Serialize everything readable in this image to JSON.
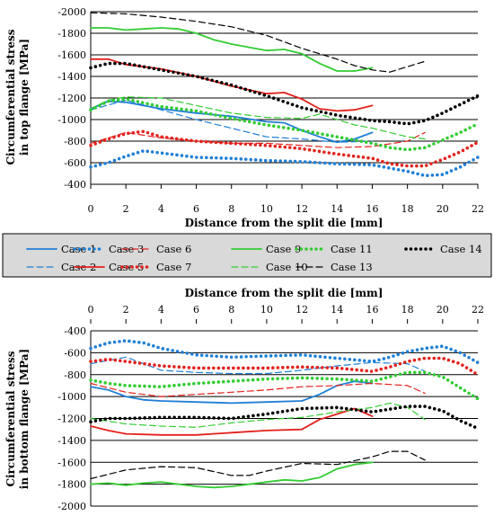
{
  "legend": [
    {
      "name": "Case 1",
      "color": "#1f7fd6",
      "style": "solid"
    },
    {
      "name": "Case 2",
      "color": "#1f7fd6",
      "style": "dash"
    },
    {
      "name": "Case 3",
      "color": "#1f7fd6",
      "style": "dot"
    },
    {
      "name": "Case 5",
      "color": "#e3211c",
      "style": "solid"
    },
    {
      "name": "Case 6",
      "color": "#e3211c",
      "style": "dash"
    },
    {
      "name": "Case 7",
      "color": "#e3211c",
      "style": "dot"
    },
    {
      "name": "Case 9",
      "color": "#33cc33",
      "style": "solid"
    },
    {
      "name": "Case 10",
      "color": "#33cc33",
      "style": "dash"
    },
    {
      "name": "Case 11",
      "color": "#33cc33",
      "style": "dot"
    },
    {
      "name": "Case 13",
      "color": "#000000",
      "style": "dash"
    },
    {
      "name": "Case 14",
      "color": "#000000",
      "style": "dot"
    }
  ],
  "chart_data": [
    {
      "type": "line",
      "title": "",
      "xlabel": "Distance from the split die [mm]",
      "ylabel": "Circumferential stress in top flange [MPa]",
      "xlim": [
        0,
        22
      ],
      "ylim": [
        -400,
        -2000
      ],
      "y_reversed": true,
      "xticks": [
        0,
        2,
        4,
        6,
        8,
        10,
        12,
        14,
        16,
        18,
        20,
        22
      ],
      "yticks": [
        -2000,
        -1800,
        -1600,
        -1400,
        -1200,
        -1000,
        -800,
        -600,
        -400
      ],
      "grid": "horizontal",
      "series": [
        {
          "name": "Case 1",
          "x": [
            0,
            1,
            2,
            4,
            6,
            8,
            10,
            11,
            12,
            13,
            14,
            15,
            16
          ],
          "y": [
            -1100,
            -1170,
            -1160,
            -1100,
            -1060,
            -1030,
            -980,
            -970,
            -900,
            -840,
            -790,
            -820,
            -880
          ]
        },
        {
          "name": "Case 2",
          "x": [
            0,
            2,
            4,
            6,
            8,
            10,
            12,
            14,
            16
          ],
          "y": [
            -1090,
            -1180,
            -1090,
            -1000,
            -920,
            -840,
            -820,
            -790,
            -800
          ]
        },
        {
          "name": "Case 3",
          "x": [
            0,
            1,
            2,
            3,
            4,
            6,
            8,
            10,
            12,
            14,
            16,
            18,
            19,
            20,
            21,
            22
          ],
          "y": [
            -560,
            -600,
            -660,
            -710,
            -690,
            -650,
            -640,
            -620,
            -610,
            -590,
            -580,
            -520,
            -480,
            -490,
            -560,
            -650
          ]
        },
        {
          "name": "Case 5",
          "x": [
            0,
            1,
            2,
            4,
            6,
            8,
            10,
            11,
            12,
            13,
            14,
            15,
            16
          ],
          "y": [
            -1560,
            -1560,
            -1510,
            -1470,
            -1400,
            -1310,
            -1240,
            -1250,
            -1190,
            -1100,
            -1080,
            -1090,
            -1130
          ]
        },
        {
          "name": "Case 6",
          "x": [
            0,
            2,
            4,
            6,
            8,
            10,
            12,
            14,
            16,
            18,
            19
          ],
          "y": [
            -780,
            -880,
            -830,
            -800,
            -780,
            -780,
            -760,
            -740,
            -750,
            -800,
            -880
          ]
        },
        {
          "name": "Case 7",
          "x": [
            0,
            1,
            2,
            3,
            4,
            6,
            8,
            10,
            12,
            14,
            16,
            17,
            18,
            19,
            20,
            21,
            22
          ],
          "y": [
            -760,
            -820,
            -870,
            -890,
            -840,
            -800,
            -780,
            -760,
            -730,
            -680,
            -640,
            -590,
            -570,
            -570,
            -630,
            -700,
            -790
          ]
        },
        {
          "name": "Case 9",
          "x": [
            0,
            1,
            2,
            3,
            4,
            5,
            6,
            7,
            8,
            9,
            10,
            11,
            12,
            13,
            14,
            15,
            16
          ],
          "y": [
            -1850,
            -1850,
            -1830,
            -1840,
            -1850,
            -1840,
            -1800,
            -1740,
            -1700,
            -1670,
            -1640,
            -1650,
            -1610,
            -1520,
            -1450,
            -1450,
            -1480
          ]
        },
        {
          "name": "Case 10",
          "x": [
            0,
            1,
            2,
            4,
            6,
            8,
            10,
            12,
            13,
            14,
            15,
            16,
            17,
            18,
            19
          ],
          "y": [
            -1100,
            -1180,
            -1210,
            -1200,
            -1130,
            -1060,
            -1020,
            -1010,
            -1050,
            -1000,
            -950,
            -920,
            -880,
            -840,
            -820
          ]
        },
        {
          "name": "Case 11",
          "x": [
            0,
            1,
            2,
            4,
            6,
            8,
            10,
            12,
            14,
            16,
            17,
            18,
            19,
            20,
            21,
            22
          ],
          "y": [
            -1090,
            -1170,
            -1190,
            -1120,
            -1080,
            -1010,
            -950,
            -900,
            -840,
            -780,
            -740,
            -720,
            -740,
            -810,
            -880,
            -960
          ]
        },
        {
          "name": "Case 13",
          "x": [
            0,
            2,
            4,
            6,
            8,
            10,
            12,
            14,
            15,
            16,
            17,
            18,
            19
          ],
          "y": [
            -1990,
            -1980,
            -1950,
            -1910,
            -1860,
            -1780,
            -1660,
            -1560,
            -1500,
            -1460,
            -1440,
            -1490,
            -1540
          ]
        },
        {
          "name": "Case 14",
          "x": [
            0,
            1,
            2,
            4,
            6,
            8,
            10,
            12,
            14,
            16,
            17,
            18,
            19,
            20,
            21,
            22
          ],
          "y": [
            -1480,
            -1520,
            -1520,
            -1460,
            -1400,
            -1320,
            -1220,
            -1110,
            -1040,
            -990,
            -980,
            -960,
            -990,
            -1060,
            -1140,
            -1220
          ]
        }
      ]
    },
    {
      "type": "line",
      "title": "",
      "xlabel": "Distance from the split die [mm]",
      "ylabel": "Circumferential stress in bottom flange [MPa]",
      "xlim": [
        0,
        22
      ],
      "ylim": [
        -400,
        -2000
      ],
      "y_reversed": false,
      "xticks": [
        0,
        2,
        4,
        6,
        8,
        10,
        12,
        14,
        16,
        18,
        20,
        22
      ],
      "yticks": [
        -400,
        -600,
        -800,
        -1000,
        -1200,
        -1400,
        -1600,
        -1800,
        -2000
      ],
      "grid": "horizontal",
      "series": [
        {
          "name": "Case 1",
          "x": [
            0,
            1,
            2,
            3,
            4,
            6,
            8,
            10,
            12,
            13,
            14,
            15,
            16
          ],
          "y": [
            -910,
            -940,
            -1000,
            -1030,
            -1040,
            -1050,
            -1060,
            -1050,
            -1040,
            -980,
            -900,
            -860,
            -880
          ]
        },
        {
          "name": "Case 2",
          "x": [
            0,
            2,
            4,
            6,
            8,
            10,
            12,
            14,
            16,
            18,
            19
          ],
          "y": [
            -700,
            -640,
            -760,
            -780,
            -790,
            -790,
            -760,
            -720,
            -690,
            -700,
            -770
          ]
        },
        {
          "name": "Case 3",
          "x": [
            0,
            1,
            2,
            3,
            4,
            6,
            8,
            10,
            12,
            14,
            16,
            17,
            18,
            19,
            20,
            21,
            22
          ],
          "y": [
            -560,
            -510,
            -490,
            -510,
            -560,
            -620,
            -640,
            -630,
            -620,
            -650,
            -680,
            -640,
            -590,
            -560,
            -540,
            -600,
            -690
          ]
        },
        {
          "name": "Case 5",
          "x": [
            0,
            1,
            2,
            4,
            6,
            8,
            10,
            12,
            13,
            14,
            15,
            16
          ],
          "y": [
            -1270,
            -1310,
            -1340,
            -1350,
            -1350,
            -1330,
            -1310,
            -1300,
            -1210,
            -1160,
            -1110,
            -1180
          ]
        },
        {
          "name": "Case 6",
          "x": [
            0,
            2,
            4,
            6,
            8,
            10,
            12,
            14,
            16,
            18,
            19
          ],
          "y": [
            -880,
            -960,
            -1000,
            -980,
            -960,
            -940,
            -910,
            -900,
            -880,
            -900,
            -970
          ]
        },
        {
          "name": "Case 7",
          "x": [
            0,
            1,
            2,
            4,
            6,
            8,
            10,
            12,
            14,
            16,
            17,
            18,
            19,
            20,
            21,
            22
          ],
          "y": [
            -680,
            -660,
            -680,
            -720,
            -740,
            -740,
            -740,
            -730,
            -740,
            -770,
            -730,
            -680,
            -650,
            -650,
            -700,
            -800
          ]
        },
        {
          "name": "Case 9",
          "x": [
            0,
            1,
            2,
            3,
            4,
            5,
            6,
            7,
            8,
            10,
            11,
            12,
            13,
            14,
            15,
            16
          ],
          "y": [
            -1800,
            -1790,
            -1810,
            -1790,
            -1780,
            -1800,
            -1820,
            -1830,
            -1820,
            -1780,
            -1760,
            -1770,
            -1740,
            -1660,
            -1620,
            -1600
          ]
        },
        {
          "name": "Case 10",
          "x": [
            0,
            2,
            4,
            6,
            8,
            10,
            12,
            14,
            16,
            17,
            18,
            19
          ],
          "y": [
            -1200,
            -1250,
            -1270,
            -1280,
            -1240,
            -1210,
            -1190,
            -1140,
            -1100,
            -1060,
            -1100,
            -1210
          ]
        },
        {
          "name": "Case 11",
          "x": [
            0,
            1,
            2,
            4,
            6,
            8,
            10,
            12,
            14,
            16,
            17,
            18,
            19,
            20,
            21,
            22
          ],
          "y": [
            -850,
            -880,
            -900,
            -910,
            -880,
            -860,
            -840,
            -830,
            -840,
            -860,
            -820,
            -780,
            -780,
            -820,
            -920,
            -1020
          ]
        },
        {
          "name": "Case 13",
          "x": [
            0,
            2,
            4,
            6,
            8,
            9,
            10,
            12,
            14,
            16,
            17,
            18,
            19
          ],
          "y": [
            -1750,
            -1670,
            -1640,
            -1650,
            -1720,
            -1720,
            -1680,
            -1610,
            -1620,
            -1550,
            -1500,
            -1500,
            -1580
          ]
        },
        {
          "name": "Case 14",
          "x": [
            0,
            1,
            2,
            4,
            6,
            8,
            10,
            12,
            14,
            16,
            18,
            19,
            20,
            21,
            22
          ],
          "y": [
            -1230,
            -1200,
            -1200,
            -1190,
            -1190,
            -1200,
            -1160,
            -1110,
            -1100,
            -1140,
            -1090,
            -1090,
            -1130,
            -1220,
            -1290
          ]
        }
      ]
    }
  ]
}
